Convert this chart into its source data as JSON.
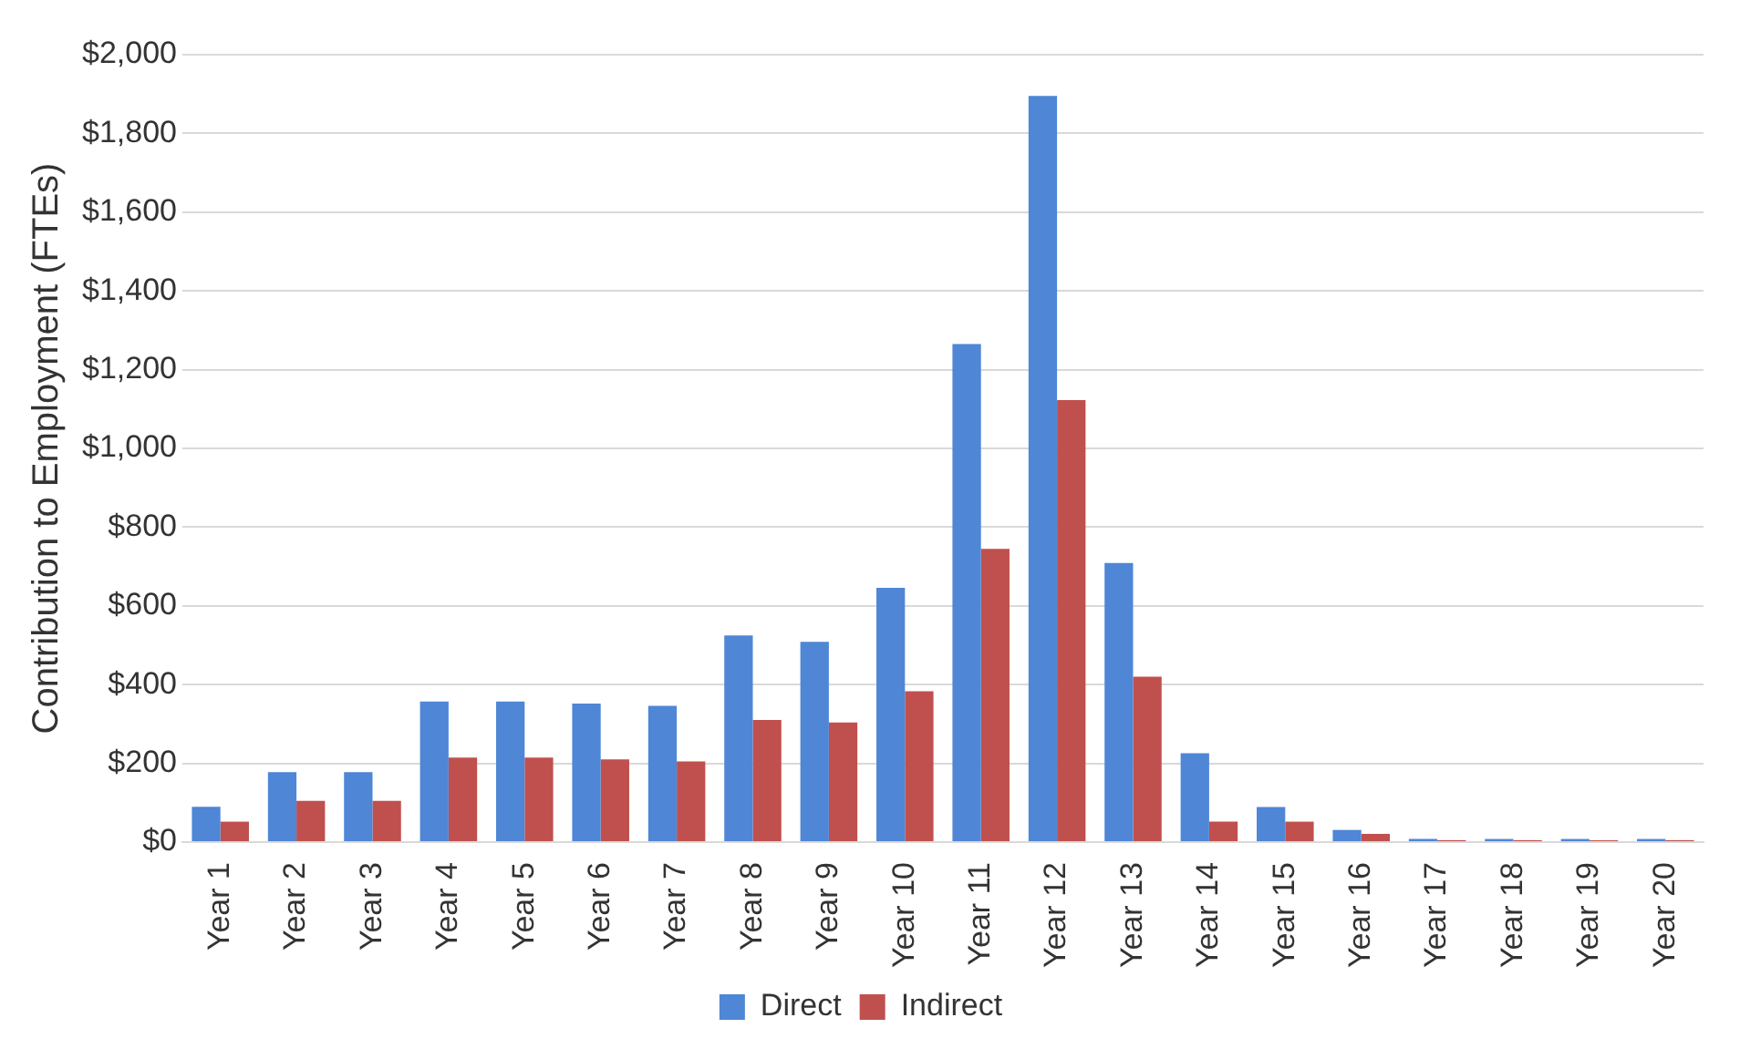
{
  "chart_data": {
    "type": "bar",
    "ylabel": "Contribution to Employment (FTEs)",
    "categories": [
      "Year 1",
      "Year 2",
      "Year 3",
      "Year 4",
      "Year 5",
      "Year 6",
      "Year 7",
      "Year 8",
      "Year 9",
      "Year 10",
      "Year 11",
      "Year 12",
      "Year 13",
      "Year 14",
      "Year 15",
      "Year 16",
      "Year 17",
      "Year 18",
      "Year 19",
      "Year 20"
    ],
    "series": [
      {
        "name": "Direct",
        "color": "#4f86d6",
        "values": [
          90,
          178,
          178,
          357,
          357,
          352,
          346,
          525,
          509,
          646,
          1265,
          1895,
          709,
          226,
          89,
          31,
          8,
          8,
          8,
          8
        ]
      },
      {
        "name": "Indirect",
        "color": "#c0504d",
        "values": [
          52,
          105,
          105,
          215,
          215,
          210,
          205,
          310,
          304,
          383,
          745,
          1123,
          420,
          52,
          52,
          21,
          5,
          5,
          5,
          5
        ]
      }
    ],
    "ylim": [
      0,
      2000
    ],
    "yticks": [
      {
        "value": 0,
        "label": "$0"
      },
      {
        "value": 200,
        "label": "$200"
      },
      {
        "value": 400,
        "label": "$400"
      },
      {
        "value": 600,
        "label": "$600"
      },
      {
        "value": 800,
        "label": "$800"
      },
      {
        "value": 1000,
        "label": "$1,000"
      },
      {
        "value": 1200,
        "label": "$1,200"
      },
      {
        "value": 1400,
        "label": "$1,400"
      },
      {
        "value": 1600,
        "label": "$1,600"
      },
      {
        "value": 1800,
        "label": "$1,800"
      },
      {
        "value": 2000,
        "label": "$2,000"
      }
    ],
    "grid": "y",
    "legend": "bottom"
  }
}
